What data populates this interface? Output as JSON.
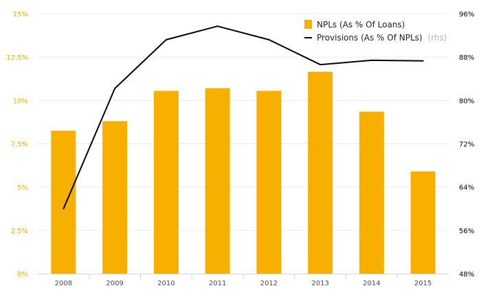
{
  "chart_data": {
    "type": "bar",
    "categories": [
      "2008",
      "2009",
      "2010",
      "2011",
      "2012",
      "2013",
      "2014",
      "2015"
    ],
    "series": [
      {
        "name": "NPLs (As % Of Loans)",
        "type": "bar",
        "axis": "left",
        "color": "#f7b000",
        "values": [
          8.25,
          8.8,
          10.55,
          10.7,
          10.55,
          11.65,
          9.35,
          5.9
        ]
      },
      {
        "name": "Provisions (As % Of NPLs)",
        "type": "line",
        "axis": "right",
        "color": "#000000",
        "values": [
          60.0,
          82.2,
          91.2,
          93.7,
          91.2,
          86.6,
          87.4,
          87.3
        ]
      }
    ],
    "y_left": {
      "ylim": [
        0,
        15
      ],
      "ticks": [
        0,
        2.5,
        5,
        7.5,
        10,
        12.5,
        15
      ],
      "tick_labels": [
        "0%",
        "2.5%",
        "5%",
        "7.5%",
        "10%",
        "12.5%",
        "15%"
      ],
      "label_color": "#f3b200"
    },
    "y_right": {
      "ylim": [
        48,
        96
      ],
      "ticks": [
        48,
        56,
        64,
        72,
        80,
        88,
        96
      ],
      "tick_labels": [
        "48%",
        "56%",
        "64%",
        "72%",
        "80%",
        "88%",
        "96%"
      ],
      "label_color": "#000000"
    },
    "legend": {
      "placement": "top-right",
      "entries": [
        {
          "label": "NPLs (As % Of Loans)",
          "suffix": ""
        },
        {
          "label": "Provisions (As % Of NPLs)",
          "suffix": "(rhs)"
        }
      ]
    },
    "grid": true,
    "title": "",
    "xlabel": "",
    "ylabel": ""
  }
}
